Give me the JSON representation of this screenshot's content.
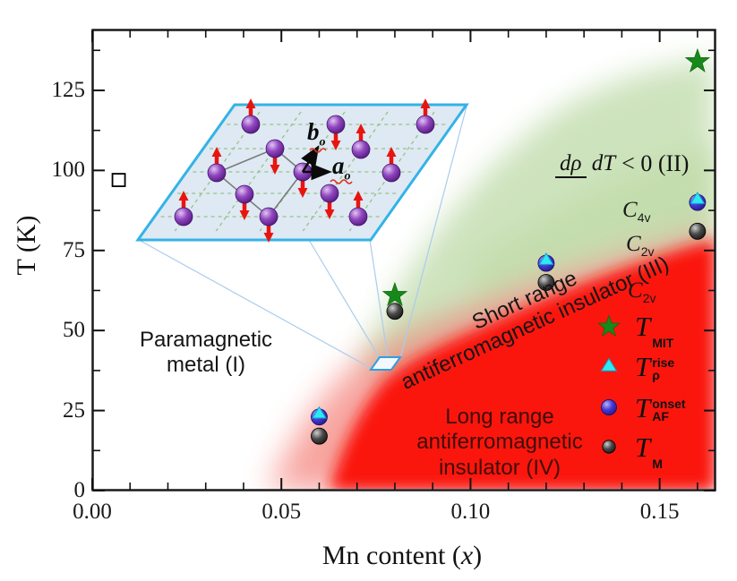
{
  "figure": {
    "x_axis": {
      "title_pre": "Mn content (",
      "title_var": "x",
      "title_post": ")",
      "major_ticks": [
        {
          "v": 0.0,
          "label": "0.00"
        },
        {
          "v": 0.05,
          "label": "0.05"
        },
        {
          "v": 0.1,
          "label": "0.10"
        },
        {
          "v": 0.15,
          "label": "0.15"
        }
      ],
      "minor_step": 0.01,
      "range": [
        0,
        0.165
      ]
    },
    "y_axis": {
      "title": "T (K)",
      "major_ticks": [
        {
          "v": 0,
          "label": "0"
        },
        {
          "v": 25,
          "label": "25"
        },
        {
          "v": 50,
          "label": "50"
        },
        {
          "v": 75,
          "label": "75"
        },
        {
          "v": 100,
          "label": "100"
        },
        {
          "v": 125,
          "label": "125"
        }
      ],
      "minor_step": 12.5,
      "range": [
        0,
        144
      ]
    },
    "regions": {
      "paramagnetic": {
        "line1": "Paramagnetic",
        "line2": "metal (I)"
      },
      "short_range": {
        "line1": "Short range",
        "line2": "antiferromagnetic insulator (III)"
      },
      "long_range": {
        "line1": "Long range",
        "line2": "antiferromagnetic",
        "line3": "insulator (IV)"
      },
      "drho": {
        "numerator": "dρ",
        "denominator": "dT",
        "rest": "< 0 (II)"
      }
    },
    "symmetry_labels": [
      {
        "main": "C",
        "sub": "4v"
      },
      {
        "main": "C",
        "sub": "2v"
      },
      {
        "main": "C",
        "sub": "2v"
      }
    ],
    "legend": {
      "items": [
        {
          "marker": "green-star",
          "main": "T",
          "sup": "",
          "sub": "MIT"
        },
        {
          "marker": "cyan-triangle",
          "main": "T",
          "sup": "rise",
          "sub": "ρ"
        },
        {
          "marker": "blue-circle",
          "main": "T",
          "sup": "onset",
          "sub": "AF"
        },
        {
          "marker": "dark-circle",
          "main": "T",
          "sup": "",
          "sub": "M"
        }
      ]
    },
    "inset": {
      "a_main": "a",
      "a_sub": "o",
      "b_main": "b",
      "b_sub": "o"
    },
    "colors": {
      "red_phase": "#fa1208",
      "pink_halo": "#f2685e",
      "green_phase": "#cde3bd",
      "star_green": "#17891a",
      "triangle_cyan": "#2de9f0",
      "circle_blue": "#4539d6",
      "circle_dark": "#2b2b2b",
      "inset_plane": "#dee9f4",
      "inset_border": "#33b3e6",
      "atom_purple": "#9148c0",
      "spin_red": "#e8150f"
    }
  },
  "chart_data": {
    "type": "scatter",
    "title": "",
    "xlabel": "Mn content (x)",
    "ylabel": "T (K)",
    "xlim": [
      0,
      0.165
    ],
    "ylim": [
      0,
      144
    ],
    "grid": false,
    "legend_position": "lower right",
    "series": [
      {
        "name": "T_AF_onset",
        "marker": "blue-circle",
        "color": "#4539d6",
        "points": [
          [
            0.06,
            23
          ],
          [
            0.12,
            71
          ],
          [
            0.16,
            90
          ]
        ]
      },
      {
        "name": "T_rho_rise",
        "marker": "cyan-triangle",
        "color": "#2de9f0",
        "points": [
          [
            0.06,
            23
          ],
          [
            0.12,
            71
          ],
          [
            0.16,
            90
          ]
        ]
      },
      {
        "name": "T_M",
        "marker": "dark-circle",
        "color": "#2b2b2b",
        "points": [
          [
            0.06,
            17
          ],
          [
            0.08,
            56
          ],
          [
            0.12,
            65
          ],
          [
            0.16,
            81
          ]
        ]
      },
      {
        "name": "T_MIT",
        "marker": "green-star",
        "color": "#17891a",
        "points": [
          [
            0.08,
            61
          ],
          [
            0.16,
            134
          ]
        ]
      },
      {
        "name": "unlabeled",
        "marker": "open-square",
        "color": "#000000",
        "points": [
          [
            0.007,
            97
          ]
        ]
      }
    ],
    "phase_regions": [
      "Paramagnetic metal (I)",
      "dρ/dT < 0 (II)",
      "Short range antiferromagnetic insulator (III)",
      "Long range antiferromagnetic insulator (IV)"
    ],
    "inset_note": "magnetic lattice with spins, axes a_o and b_o, zoom lines point to x≈0.077, T≈40"
  }
}
